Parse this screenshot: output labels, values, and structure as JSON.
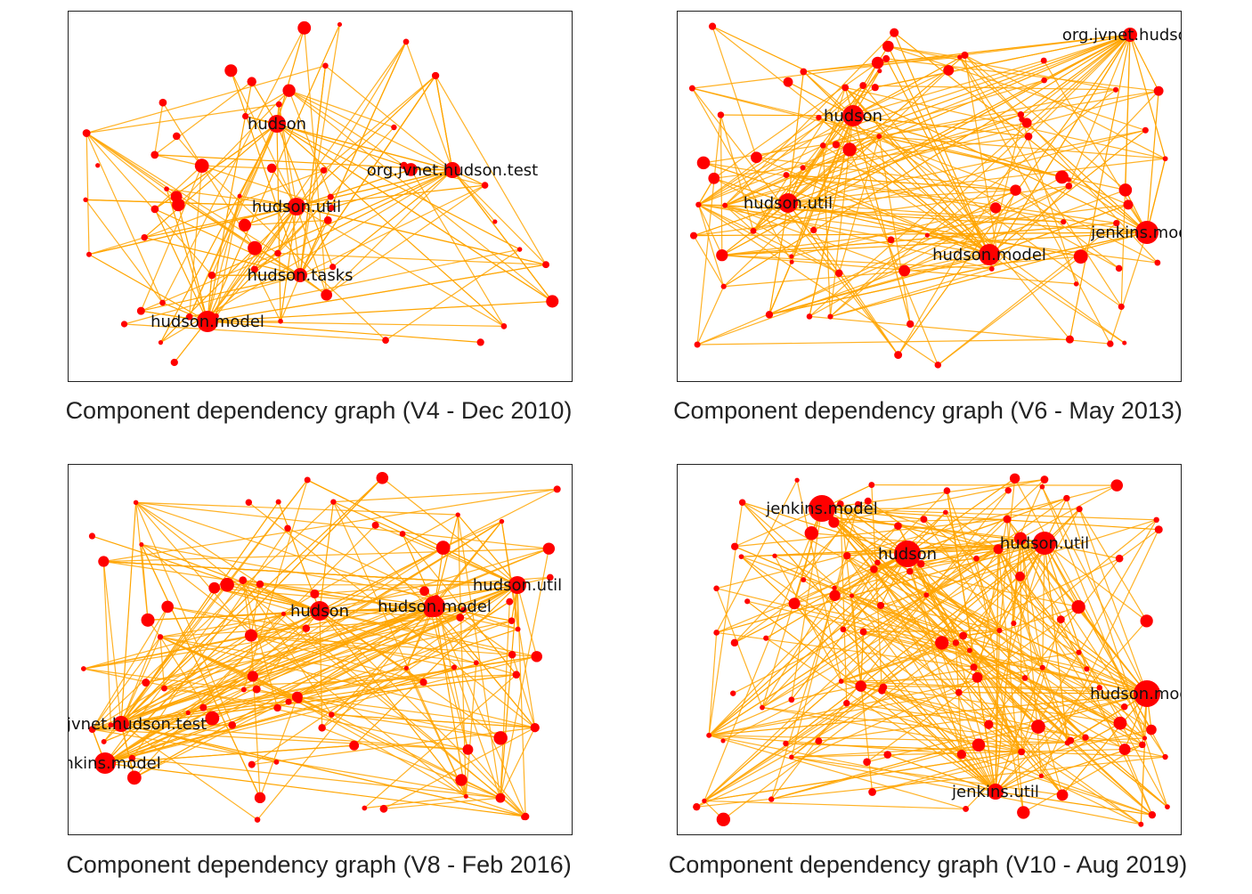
{
  "colors": {
    "edge": "#FFA500",
    "node": "#FF0000",
    "label": "#111111"
  },
  "graphs": [
    {
      "caption": "Component dependency graph (V4 - Dec 2010)",
      "hubs": [
        "hudson",
        "org.jvnet.hudson.test",
        "hudson.util",
        "hudson.tasks",
        "hudson.model"
      ]
    },
    {
      "caption": "Component dependency graph (V6 - May 2013)",
      "hubs": [
        "org.jvnet.hudson",
        "hudson",
        "hudson.util",
        "jenkins.model",
        "hudson.model"
      ]
    },
    {
      "caption": "Component dependency graph (V8 - Feb 2016)",
      "hubs": [
        "hudson",
        "hudson.model",
        "hudson.util",
        "org.jvnet.hudson.test",
        "jenkins.model"
      ]
    },
    {
      "caption": "Component dependency graph (V10 - Aug 2019)",
      "hubs": [
        "jenkins.model",
        "hudson",
        "hudson.util",
        "hudson.model",
        "jenkins.util"
      ]
    }
  ]
}
